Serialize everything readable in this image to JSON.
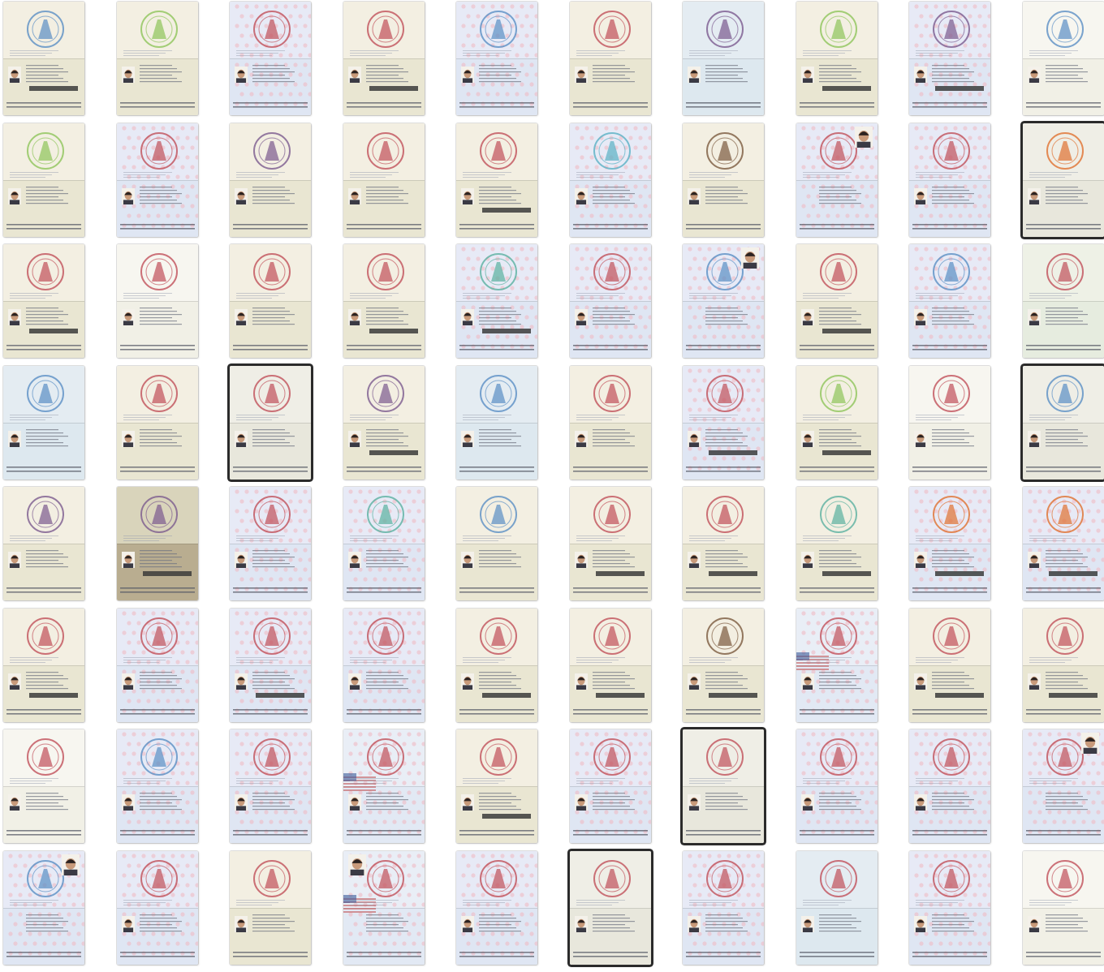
{
  "collage": {
    "rows": 8,
    "cols": 10,
    "tiles": [
      {
        "style": "mx",
        "stamp": "#5a8fc4",
        "photo": "top-left-low",
        "mrz_dark": true
      },
      {
        "style": "mx",
        "stamp": "#8dc45a",
        "photo": "low",
        "mrz_dark": false
      },
      {
        "style": "pink",
        "stamp": "#c0505a",
        "photo": "low",
        "mrz_dark": false
      },
      {
        "style": "mx",
        "stamp": "#c0505a",
        "photo": "low",
        "mrz_dark": true
      },
      {
        "style": "pink",
        "stamp": "#5a8fc4",
        "photo": "low",
        "mrz_dark": false
      },
      {
        "style": "mx",
        "stamp": "#c0505a",
        "photo": "low",
        "mrz_dark": false
      },
      {
        "style": "blue",
        "stamp": "#7a5a8f",
        "photo": "low",
        "mrz_dark": false
      },
      {
        "style": "mx",
        "stamp": "#8dc45a",
        "photo": "low",
        "mrz_dark": true
      },
      {
        "style": "pink",
        "stamp": "#7a5a8f",
        "photo": "low",
        "mrz_dark": true
      },
      {
        "style": "plain",
        "stamp": "#5a8fc4",
        "photo": "low",
        "mrz_dark": false
      },
      {
        "style": "mx",
        "stamp": "#8dc45a",
        "photo": "low",
        "mrz_dark": false
      },
      {
        "style": "pink",
        "stamp": "#c0505a",
        "photo": "low",
        "mrz_dark": false
      },
      {
        "style": "mx",
        "stamp": "#7a5a8f",
        "photo": "low",
        "mrz_dark": false
      },
      {
        "style": "mx",
        "stamp": "#c0505a",
        "photo": "low",
        "mrz_dark": false
      },
      {
        "style": "mx",
        "stamp": "#c0505a",
        "photo": "low",
        "mrz_dark": true
      },
      {
        "style": "pink",
        "stamp": "#5ab0c4",
        "photo": "low",
        "mrz_dark": false
      },
      {
        "style": "mx",
        "stamp": "#7a5a3f",
        "photo": "low",
        "mrz_dark": false
      },
      {
        "style": "pink",
        "stamp": "#c0505a",
        "photo": "top-right",
        "mrz_dark": false
      },
      {
        "style": "pink",
        "stamp": "#c0505a",
        "photo": "low",
        "mrz_dark": false
      },
      {
        "style": "dark",
        "stamp": "#e07030",
        "photo": "low",
        "mrz_dark": false
      },
      {
        "style": "mx",
        "stamp": "#c0505a",
        "photo": "low",
        "mrz_dark": true
      },
      {
        "style": "plain",
        "stamp": "#c0505a",
        "photo": "low",
        "mrz_dark": false
      },
      {
        "style": "mx",
        "stamp": "#c0505a",
        "photo": "low",
        "mrz_dark": false
      },
      {
        "style": "mx",
        "stamp": "#c0505a",
        "photo": "low",
        "mrz_dark": true
      },
      {
        "style": "pink",
        "stamp": "#5ab0a0",
        "photo": "low",
        "mrz_dark": true
      },
      {
        "style": "pink",
        "stamp": "#c0505a",
        "photo": "low",
        "mrz_dark": false
      },
      {
        "style": "pink",
        "stamp": "#5a8fc4",
        "photo": "top-right",
        "mrz_dark": false
      },
      {
        "style": "mx",
        "stamp": "#c0505a",
        "photo": "low",
        "mrz_dark": true
      },
      {
        "style": "pink",
        "stamp": "#5a8fc4",
        "photo": "low",
        "mrz_dark": false
      },
      {
        "style": "green",
        "stamp": "#c0505a",
        "photo": "low",
        "mrz_dark": false
      },
      {
        "style": "blue",
        "stamp": "#5a8fc4",
        "photo": "low",
        "mrz_dark": false
      },
      {
        "style": "mx",
        "stamp": "#c0505a",
        "photo": "low",
        "mrz_dark": false
      },
      {
        "style": "dark",
        "stamp": "#c0505a",
        "photo": "low",
        "mrz_dark": false
      },
      {
        "style": "mx",
        "stamp": "#7a5a8f",
        "photo": "low",
        "mrz_dark": true
      },
      {
        "style": "blue",
        "stamp": "#5a8fc4",
        "photo": "low",
        "mrz_dark": false
      },
      {
        "style": "mx",
        "stamp": "#c0505a",
        "photo": "low",
        "mrz_dark": false
      },
      {
        "style": "pink",
        "stamp": "#c0505a",
        "photo": "low",
        "mrz_dark": true
      },
      {
        "style": "mx",
        "stamp": "#8dc45a",
        "photo": "low",
        "mrz_dark": true
      },
      {
        "style": "plain",
        "stamp": "#c0505a",
        "photo": "low",
        "mrz_dark": false
      },
      {
        "style": "dark",
        "stamp": "#5a8fc4",
        "photo": "low",
        "mrz_dark": false
      },
      {
        "style": "mx",
        "stamp": "#7a5a8f",
        "photo": "low",
        "mrz_dark": false
      },
      {
        "style": "olive",
        "stamp": "#7a5a8f",
        "photo": "low",
        "mrz_dark": true
      },
      {
        "style": "pink",
        "stamp": "#c0505a",
        "photo": "low",
        "mrz_dark": false
      },
      {
        "style": "pink",
        "stamp": "#5ab0a0",
        "photo": "low",
        "mrz_dark": false
      },
      {
        "style": "mx",
        "stamp": "#5a8fc4",
        "photo": "low",
        "mrz_dark": false
      },
      {
        "style": "mx",
        "stamp": "#c0505a",
        "photo": "low",
        "mrz_dark": true
      },
      {
        "style": "mx",
        "stamp": "#c0505a",
        "photo": "low",
        "mrz_dark": true
      },
      {
        "style": "mx",
        "stamp": "#5ab0a0",
        "photo": "low",
        "mrz_dark": true
      },
      {
        "style": "pink",
        "stamp": "#e07030",
        "photo": "low",
        "mrz_dark": true
      },
      {
        "style": "pink",
        "stamp": "#e07030",
        "photo": "low",
        "mrz_dark": true
      },
      {
        "style": "mx",
        "stamp": "#c0505a",
        "photo": "low",
        "mrz_dark": true
      },
      {
        "style": "pink",
        "stamp": "#c0505a",
        "photo": "low",
        "mrz_dark": false
      },
      {
        "style": "pink",
        "stamp": "#c0505a",
        "photo": "low",
        "mrz_dark": true
      },
      {
        "style": "pink",
        "stamp": "#c0505a",
        "photo": "low",
        "mrz_dark": false
      },
      {
        "style": "mx",
        "stamp": "#c0505a",
        "photo": "low",
        "mrz_dark": true
      },
      {
        "style": "mx",
        "stamp": "#c0505a",
        "photo": "low",
        "mrz_dark": true
      },
      {
        "style": "mx",
        "stamp": "#7a5a3f",
        "photo": "low",
        "mrz_dark": true
      },
      {
        "style": "usa",
        "stamp": "#c0505a",
        "photo": "low",
        "mrz_dark": false
      },
      {
        "style": "mx",
        "stamp": "#c0505a",
        "photo": "low",
        "mrz_dark": true
      },
      {
        "style": "mx",
        "stamp": "#c0505a",
        "photo": "low",
        "mrz_dark": true
      },
      {
        "style": "plain",
        "stamp": "#c0505a",
        "photo": "low",
        "mrz_dark": false
      },
      {
        "style": "pink",
        "stamp": "#5a8fc4",
        "photo": "low",
        "mrz_dark": false
      },
      {
        "style": "pink",
        "stamp": "#c0505a",
        "photo": "low",
        "mrz_dark": false
      },
      {
        "style": "usa",
        "stamp": "#c0505a",
        "photo": "low",
        "mrz_dark": false
      },
      {
        "style": "mx",
        "stamp": "#c0505a",
        "photo": "low",
        "mrz_dark": true
      },
      {
        "style": "pink",
        "stamp": "#c0505a",
        "photo": "low",
        "mrz_dark": false
      },
      {
        "style": "dark",
        "stamp": "#c0505a",
        "photo": "low",
        "mrz_dark": false
      },
      {
        "style": "pink",
        "stamp": "#c0505a",
        "photo": "low",
        "mrz_dark": false
      },
      {
        "style": "pink",
        "stamp": "#c0505a",
        "photo": "low",
        "mrz_dark": false
      },
      {
        "style": "pink",
        "stamp": "#c0505a",
        "photo": "top-right",
        "mrz_dark": false
      },
      {
        "style": "pink",
        "stamp": "#5a8fc4",
        "photo": "top-right",
        "mrz_dark": false
      },
      {
        "style": "pink",
        "stamp": "#c0505a",
        "photo": "low",
        "mrz_dark": false
      },
      {
        "style": "mx",
        "stamp": "#c0505a",
        "photo": "low",
        "mrz_dark": false
      },
      {
        "style": "usa",
        "stamp": "#c0505a",
        "photo": "top-left",
        "mrz_dark": false
      },
      {
        "style": "pink",
        "stamp": "#c0505a",
        "photo": "low",
        "mrz_dark": false
      },
      {
        "style": "dark",
        "stamp": "#c0505a",
        "photo": "low",
        "mrz_dark": false
      },
      {
        "style": "pink",
        "stamp": "#c0505a",
        "photo": "low",
        "mrz_dark": false
      },
      {
        "style": "blue",
        "stamp": "#c0505a",
        "photo": "low",
        "mrz_dark": false
      },
      {
        "style": "pink",
        "stamp": "#c0505a",
        "photo": "low",
        "mrz_dark": false
      },
      {
        "style": "plain",
        "stamp": "#c0505a",
        "photo": "low",
        "mrz_dark": false
      }
    ]
  },
  "palette": {
    "mx": {
      "top": "#f3efe2",
      "bot": "#e9e6d2"
    },
    "pink": {
      "top": "#e7eaf6",
      "bot": "#dfe6f3"
    },
    "blue": {
      "top": "#e4ecf2",
      "bot": "#dde8ef"
    },
    "plain": {
      "top": "#f7f6f0",
      "bot": "#f1f0e6"
    },
    "dark": {
      "top": "#efeee6",
      "bot": "#e8e7dc"
    },
    "green": {
      "top": "#eef1e6",
      "bot": "#e6ecdf"
    },
    "olive": {
      "top": "#d9d4bb",
      "bot": "#b9ad90"
    },
    "usa": {
      "top": "#e9eef6",
      "bot": "#e2e9f4"
    }
  }
}
